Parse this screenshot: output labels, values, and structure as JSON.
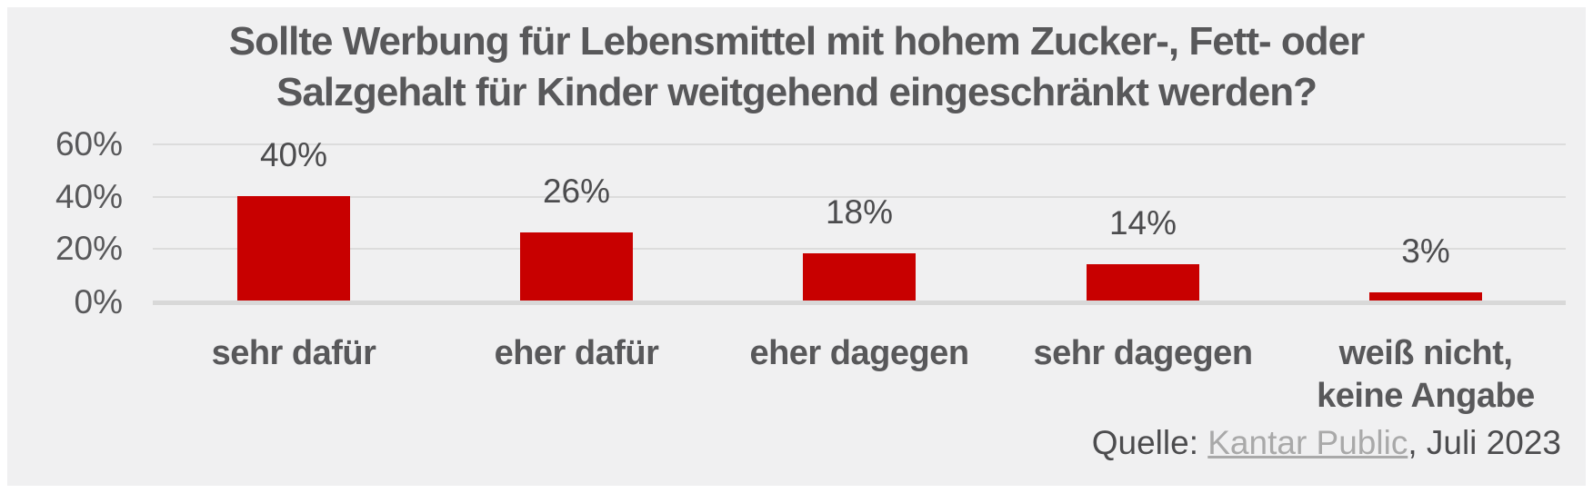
{
  "chart_data": {
    "type": "bar",
    "title": "Sollte Werbung für Lebensmittel mit hohem Zucker-, Fett- oder Salzgehalt für Kinder weitgehend eingeschränkt werden?",
    "title_lines": [
      "Sollte Werbung für Lebensmittel mit hohem Zucker-, Fett- oder",
      "Salzgehalt für Kinder weitgehend eingeschränkt werden?"
    ],
    "categories": [
      "sehr dafür",
      "eher dafür",
      "eher dagegen",
      "sehr dagegen",
      "weiß nicht,\nkeine Angabe"
    ],
    "values": [
      40,
      26,
      18,
      14,
      3
    ],
    "value_labels": [
      "40%",
      "26%",
      "18%",
      "14%",
      "3%"
    ],
    "y_ticks": [
      "60%",
      "40%",
      "20%",
      "0%"
    ],
    "y_tick_values": [
      60,
      40,
      20,
      0
    ],
    "ylim": [
      0,
      60
    ],
    "grid": "horizontal",
    "legend": "none",
    "xlabel": "",
    "ylabel": "",
    "bar_color": "#c80000",
    "background_color": "#f0f0f1",
    "source": {
      "prefix": "Quelle: ",
      "link": "Kantar Public",
      "suffix": ", Juli 2023"
    }
  }
}
